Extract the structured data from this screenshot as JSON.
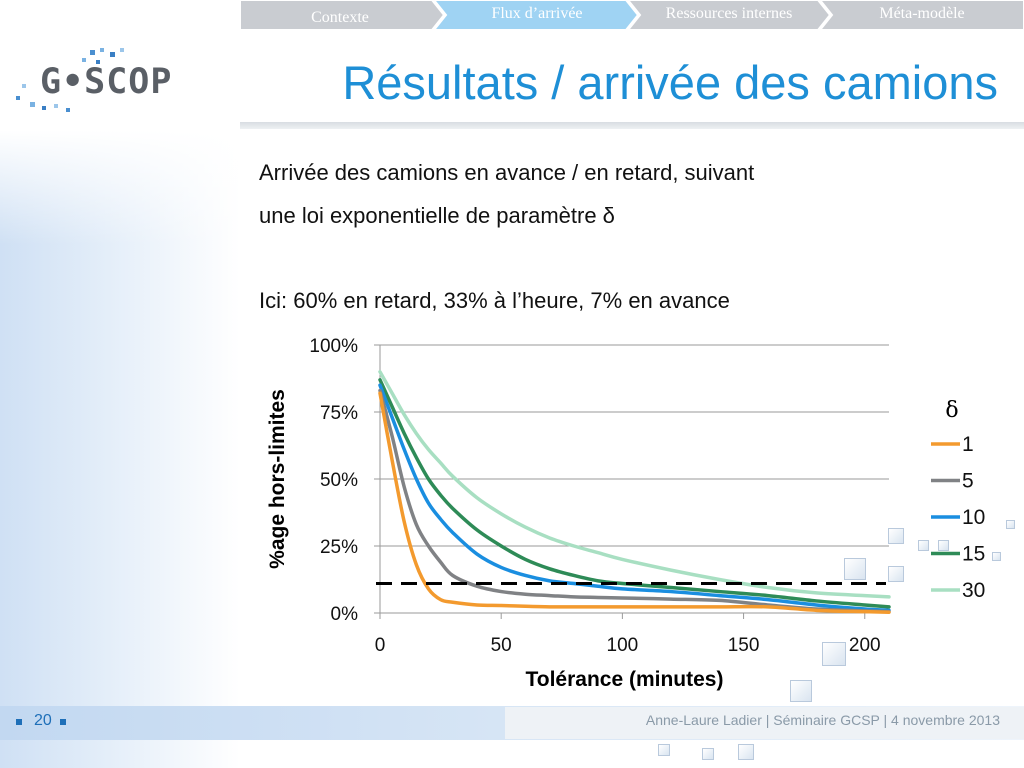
{
  "nav": {
    "tabs": [
      {
        "label": "Contexte",
        "active": false
      },
      {
        "label": "Flux d’arrivée",
        "active": true
      },
      {
        "label": "Ressources internes",
        "active": false
      },
      {
        "label": "Méta-modèle",
        "active": false
      }
    ]
  },
  "logo": {
    "text": "G•SCOP"
  },
  "slide": {
    "title": "Résultats / arrivée des camions",
    "body_line1": "Arrivée des camions en avance / en retard, suivant",
    "body_line2": "une loi exponentielle de paramètre δ",
    "body_line3": "Ici: 60% en retard, 33% à l’heure, 7% en avance"
  },
  "footer": {
    "page_number": "20",
    "text": "Anne-Laure Ladier | Séminaire GCSP | 4 novembre 2013"
  },
  "colors": {
    "accent": "#1e8fd6",
    "nav_inactive": "#c9ccd1",
    "nav_active": "#9fd3f3"
  },
  "chart_data": {
    "type": "line",
    "title": "",
    "xlabel": "Tolérance (minutes)",
    "ylabel": "%age hors-limites",
    "xlim": [
      0,
      210
    ],
    "ylim": [
      0,
      100
    ],
    "x_ticks": [
      0,
      50,
      100,
      150,
      200
    ],
    "x_tick_labels": [
      "0",
      "50",
      "100",
      "150",
      "200"
    ],
    "y_ticks": [
      0,
      25,
      50,
      75,
      100
    ],
    "y_tick_labels": [
      "0%",
      "25%",
      "50%",
      "75%",
      "100%"
    ],
    "grid": "horizontal",
    "legend_title": "δ",
    "legend_position": "right",
    "x": [
      0,
      5,
      10,
      15,
      20,
      25,
      30,
      40,
      50,
      60,
      70,
      80,
      90,
      100,
      120,
      140,
      160,
      180,
      200,
      210
    ],
    "series": [
      {
        "name": "1",
        "color": "#f39a2e",
        "values": [
          82,
          57,
          34,
          18,
          9,
          5,
          4,
          3,
          2.8,
          2.5,
          2.3,
          2.3,
          2.3,
          2.3,
          2.3,
          2.3,
          2.3,
          1,
          0.5,
          0.3
        ]
      },
      {
        "name": "5",
        "color": "#808285",
        "values": [
          83,
          66,
          47,
          33,
          25,
          19,
          14,
          10,
          8,
          7,
          6.5,
          6,
          5.8,
          5.6,
          5.2,
          4.7,
          3,
          1.5,
          0.8,
          0.5
        ]
      },
      {
        "name": "10",
        "color": "#1a8ee0",
        "values": [
          85,
          73,
          61,
          50,
          41,
          35,
          30,
          22,
          17,
          14,
          12,
          11,
          10,
          9,
          8,
          6.5,
          5,
          3,
          1.5,
          1
        ]
      },
      {
        "name": "15",
        "color": "#2e8b57",
        "values": [
          87,
          77,
          67,
          58,
          50,
          44,
          39,
          31,
          25,
          20,
          16.5,
          14,
          12,
          11,
          9.5,
          8,
          6.5,
          4.5,
          3,
          2.3
        ]
      },
      {
        "name": "30",
        "color": "#a8dfc2",
        "values": [
          90,
          82,
          74,
          67,
          61,
          56,
          51,
          43,
          37,
          32,
          28,
          25,
          22.5,
          20,
          16,
          12.5,
          9.5,
          7.5,
          6.5,
          6
        ]
      }
    ],
    "reference_line": {
      "y": 11,
      "style": "dashed",
      "color": "#000000"
    }
  }
}
